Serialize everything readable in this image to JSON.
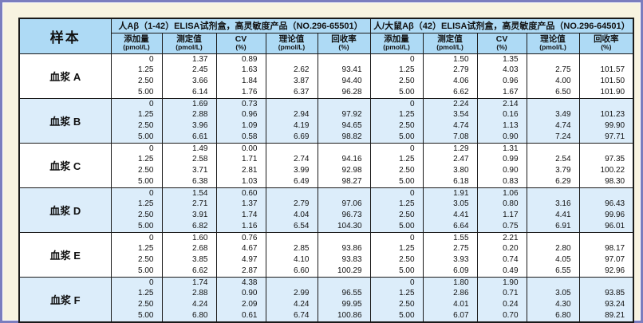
{
  "colors": {
    "page_bg": "#f8f3e0",
    "frame_border": "#7b7dbe",
    "header_bg": "#aedaf5",
    "stripe_bg": "#dcedfa",
    "table_border": "#1a1a1a"
  },
  "table": {
    "sample_header": "样本",
    "products": [
      {
        "title": "人Aβ（1-42）ELISA试剂盒，高灵敏度产品（NO.296-65501）"
      },
      {
        "title": "人/大鼠Aβ（42）ELISA试剂盒，高灵敏度产品（NO.296-64501）"
      }
    ],
    "columns": [
      {
        "label": "添加量",
        "unit": "(pmol/L)"
      },
      {
        "label": "测定值",
        "unit": "(pmol/L)"
      },
      {
        "label": "CV",
        "unit": "(%)"
      },
      {
        "label": "理论值",
        "unit": "(pmol/L)"
      },
      {
        "label": "回收率",
        "unit": "(%)"
      }
    ],
    "samples": [
      {
        "name": "血浆 A",
        "shaded": false,
        "left": [
          [
            "0",
            "1.37",
            "0.89",
            "",
            ""
          ],
          [
            "1.25",
            "2.45",
            "1.63",
            "2.62",
            "93.41"
          ],
          [
            "2.50",
            "3.66",
            "1.84",
            "3.87",
            "94.40"
          ],
          [
            "5.00",
            "6.14",
            "1.76",
            "6.37",
            "96.28"
          ]
        ],
        "right": [
          [
            "0",
            "1.50",
            "1.35",
            "",
            ""
          ],
          [
            "1.25",
            "2.79",
            "4.03",
            "2.75",
            "101.57"
          ],
          [
            "2.50",
            "4.06",
            "0.96",
            "4.00",
            "101.50"
          ],
          [
            "5.00",
            "6.62",
            "1.67",
            "6.50",
            "101.90"
          ]
        ]
      },
      {
        "name": "血浆 B",
        "shaded": true,
        "left": [
          [
            "0",
            "1.69",
            "0.73",
            "",
            ""
          ],
          [
            "1.25",
            "2.88",
            "0.96",
            "2.94",
            "97.92"
          ],
          [
            "2.50",
            "3.96",
            "1.09",
            "4.19",
            "94.65"
          ],
          [
            "5.00",
            "6.61",
            "0.58",
            "6.69",
            "98.82"
          ]
        ],
        "right": [
          [
            "0",
            "2.24",
            "2.14",
            "",
            ""
          ],
          [
            "1.25",
            "3.54",
            "0.16",
            "3.49",
            "101.23"
          ],
          [
            "2.50",
            "4.74",
            "1.13",
            "4.74",
            "99.90"
          ],
          [
            "5.00",
            "7.08",
            "0.90",
            "7.24",
            "97.71"
          ]
        ]
      },
      {
        "name": "血浆 C",
        "shaded": false,
        "left": [
          [
            "0",
            "1.49",
            "0.00",
            "",
            ""
          ],
          [
            "1.25",
            "2.58",
            "1.71",
            "2.74",
            "94.16"
          ],
          [
            "2.50",
            "3.71",
            "2.81",
            "3.99",
            "92.98"
          ],
          [
            "5.00",
            "6.38",
            "1.03",
            "6.49",
            "98.27"
          ]
        ],
        "right": [
          [
            "0",
            "1.29",
            "1.31",
            "",
            ""
          ],
          [
            "1.25",
            "2.47",
            "0.99",
            "2.54",
            "97.35"
          ],
          [
            "2.50",
            "3.80",
            "0.90",
            "3.79",
            "100.22"
          ],
          [
            "5.00",
            "6.18",
            "0.83",
            "6.29",
            "98.30"
          ]
        ]
      },
      {
        "name": "血浆 D",
        "shaded": true,
        "left": [
          [
            "0",
            "1.54",
            "0.60",
            "",
            ""
          ],
          [
            "1.25",
            "2.71",
            "1.37",
            "2.79",
            "97.06"
          ],
          [
            "2.50",
            "3.91",
            "1.74",
            "4.04",
            "96.73"
          ],
          [
            "5.00",
            "6.82",
            "1.16",
            "6.54",
            "104.30"
          ]
        ],
        "right": [
          [
            "0",
            "1.91",
            "1.06",
            "",
            ""
          ],
          [
            "1.25",
            "3.05",
            "0.80",
            "3.16",
            "96.43"
          ],
          [
            "2.50",
            "4.41",
            "1.17",
            "4.41",
            "99.96"
          ],
          [
            "5.00",
            "6.64",
            "0.75",
            "6.91",
            "96.01"
          ]
        ]
      },
      {
        "name": "血浆 E",
        "shaded": false,
        "left": [
          [
            "0",
            "1.60",
            "0.76",
            "",
            ""
          ],
          [
            "1.25",
            "2.68",
            "4.67",
            "2.85",
            "93.86"
          ],
          [
            "2.50",
            "3.85",
            "4.97",
            "4.10",
            "93.83"
          ],
          [
            "5.00",
            "6.62",
            "2.87",
            "6.60",
            "100.29"
          ]
        ],
        "right": [
          [
            "0",
            "1.55",
            "2.21",
            "",
            ""
          ],
          [
            "1.25",
            "2.75",
            "0.20",
            "2.80",
            "98.17"
          ],
          [
            "2.50",
            "3.93",
            "0.74",
            "4.05",
            "97.07"
          ],
          [
            "5.00",
            "6.09",
            "0.49",
            "6.55",
            "92.96"
          ]
        ]
      },
      {
        "name": "血浆 F",
        "shaded": true,
        "left": [
          [
            "0",
            "1.74",
            "4.38",
            "",
            ""
          ],
          [
            "1.25",
            "2.88",
            "0.90",
            "2.99",
            "96.55"
          ],
          [
            "2.50",
            "4.24",
            "2.09",
            "4.24",
            "99.95"
          ],
          [
            "5.00",
            "6.80",
            "0.61",
            "6.74",
            "100.86"
          ]
        ],
        "right": [
          [
            "0",
            "1.80",
            "1.90",
            "",
            ""
          ],
          [
            "1.25",
            "2.86",
            "0.71",
            "3.05",
            "93.85"
          ],
          [
            "2.50",
            "4.01",
            "0.24",
            "4.30",
            "93.24"
          ],
          [
            "5.00",
            "6.07",
            "0.70",
            "6.80",
            "89.21"
          ]
        ]
      }
    ]
  }
}
